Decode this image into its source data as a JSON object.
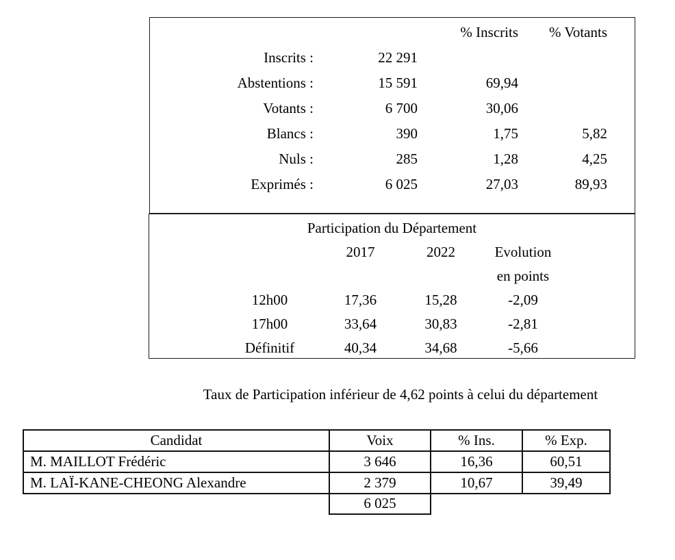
{
  "page": {
    "background": "#ffffff",
    "text_color": "#000000",
    "border_color": "#1c1c1c"
  },
  "summary_table": {
    "col_headers": {
      "pct_inscrits": "% Inscrits",
      "pct_votants": "% Votants"
    },
    "rows": [
      {
        "label": "Inscrits :",
        "value": "22 291",
        "pct_inscrits": "",
        "pct_votants": ""
      },
      {
        "label": "Abstentions :",
        "value": "15 591",
        "pct_inscrits": "69,94",
        "pct_votants": ""
      },
      {
        "label": "Votants :",
        "value": "6 700",
        "pct_inscrits": "30,06",
        "pct_votants": ""
      },
      {
        "label": "Blancs :",
        "value": "390",
        "pct_inscrits": "1,75",
        "pct_votants": "5,82"
      },
      {
        "label": "Nuls :",
        "value": "285",
        "pct_inscrits": "1,28",
        "pct_votants": "4,25"
      },
      {
        "label": "Exprimés :",
        "value": "6 025",
        "pct_inscrits": "27,03",
        "pct_votants": "89,93"
      }
    ]
  },
  "participation_table": {
    "title": "Participation du Département",
    "col_headers": {
      "y2017": "2017",
      "y2022": "2022",
      "evolution_line1": "Evolution",
      "evolution_line2": "en points"
    },
    "rows": [
      {
        "label": "12h00",
        "y2017": "17,36",
        "y2022": "15,28",
        "evolution": "-2,09"
      },
      {
        "label": "17h00",
        "y2017": "33,64",
        "y2022": "30,83",
        "evolution": "-2,81"
      },
      {
        "label": "Définitif",
        "y2017": "40,34",
        "y2022": "34,68",
        "evolution": "-5,66"
      }
    ]
  },
  "note": "Taux de Participation inférieur de 4,62 points à celui du département",
  "candidates_table": {
    "headers": {
      "candidat": "Candidat",
      "voix": "Voix",
      "pct_ins": "% Ins.",
      "pct_exp": "% Exp."
    },
    "rows": [
      {
        "name": "M. MAILLOT Frédéric",
        "voix": "3 646",
        "pct_ins": "16,36",
        "pct_exp": "60,51"
      },
      {
        "name": "M. LAÏ-KANE-CHEONG Alexandre",
        "voix": "2 379",
        "pct_ins": "10,67",
        "pct_exp": "39,49"
      }
    ],
    "total_voix": "6 025"
  }
}
